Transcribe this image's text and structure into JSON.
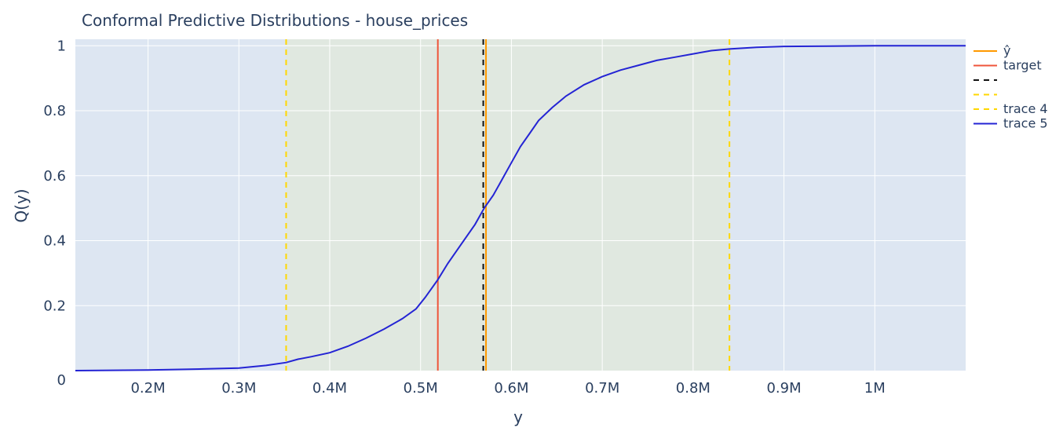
{
  "chart_data": {
    "type": "line",
    "title": "Conformal Predictive Distributions - house_prices",
    "xlabel": "y",
    "ylabel": "Q(y)",
    "xlim": [
      120000,
      1100000
    ],
    "ylim": [
      0,
      1.02
    ],
    "x_ticks": [
      {
        "value": 200000,
        "label": "0.2M"
      },
      {
        "value": 300000,
        "label": "0.3M"
      },
      {
        "value": 400000,
        "label": "0.4M"
      },
      {
        "value": 500000,
        "label": "0.5M"
      },
      {
        "value": 600000,
        "label": "0.6M"
      },
      {
        "value": 700000,
        "label": "0.7M"
      },
      {
        "value": 800000,
        "label": "0.8M"
      },
      {
        "value": 900000,
        "label": "0.9M"
      },
      {
        "value": 1000000,
        "label": "1M"
      }
    ],
    "y_ticks": [
      {
        "value": 0,
        "label": "0"
      },
      {
        "value": 0.2,
        "label": "0.2"
      },
      {
        "value": 0.4,
        "label": "0.4"
      },
      {
        "value": 0.6,
        "label": "0.6"
      },
      {
        "value": 0.8,
        "label": "0.8"
      },
      {
        "value": 1,
        "label": "1"
      }
    ],
    "grid": true,
    "legend_position": "right",
    "shaded_interval": {
      "x0": 352000,
      "x1": 840000,
      "color": "#e0e8e0"
    },
    "plot_background": "#dde6f2",
    "vertical_lines": [
      {
        "name": "ŷ",
        "x": 572000,
        "color": "#ff9900",
        "dash": "solid"
      },
      {
        "name": "target",
        "x": 519000,
        "color": "#ef553b",
        "dash": "solid"
      },
      {
        "name": "",
        "x": 569000,
        "color": "#111111",
        "dash": "dashed"
      },
      {
        "name": "",
        "x": 352000,
        "color": "#ffd700",
        "dash": "dashed"
      },
      {
        "name": "trace 4",
        "x": 840000,
        "color": "#ffd700",
        "dash": "dashed"
      }
    ],
    "series": [
      {
        "name": "trace 5",
        "color": "#2424d4",
        "x": [
          120000,
          200000,
          260000,
          300000,
          330000,
          352000,
          365000,
          380000,
          400000,
          420000,
          440000,
          460000,
          480000,
          495000,
          505000,
          519000,
          530000,
          545000,
          560000,
          570000,
          580000,
          590000,
          600000,
          610000,
          620000,
          630000,
          645000,
          660000,
          680000,
          700000,
          720000,
          740000,
          760000,
          780000,
          800000,
          820000,
          840000,
          870000,
          900000,
          950000,
          1000000,
          1100000
        ],
        "y": [
          0,
          0.002,
          0.005,
          0.008,
          0.016,
          0.025,
          0.035,
          0.043,
          0.055,
          0.075,
          0.1,
          0.128,
          0.16,
          0.19,
          0.225,
          0.28,
          0.33,
          0.39,
          0.45,
          0.5,
          0.54,
          0.59,
          0.64,
          0.69,
          0.73,
          0.77,
          0.81,
          0.845,
          0.88,
          0.905,
          0.925,
          0.94,
          0.955,
          0.965,
          0.975,
          0.985,
          0.99,
          0.995,
          0.998,
          0.999,
          1.0,
          1.0
        ]
      }
    ],
    "legend": [
      {
        "label": "ŷ",
        "color": "#ff9900",
        "dash": "solid"
      },
      {
        "label": "target",
        "color": "#ef553b",
        "dash": "solid"
      },
      {
        "label": "",
        "color": "#111111",
        "dash": "dashed"
      },
      {
        "label": "",
        "color": "#ffd700",
        "dash": "dashed"
      },
      {
        "label": "trace 4",
        "color": "#ffd700",
        "dash": "dashed"
      },
      {
        "label": "trace 5",
        "color": "#2424d4",
        "dash": "solid"
      }
    ]
  }
}
